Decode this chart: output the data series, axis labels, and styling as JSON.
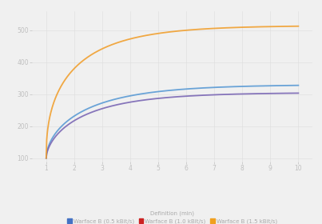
{
  "background_color": "#f0f0f0",
  "ylim": [
    90,
    560
  ],
  "xlim": [
    0.5,
    10.5
  ],
  "yticks": [
    100,
    200,
    300,
    400,
    500
  ],
  "xticks": [
    1,
    2,
    3,
    4,
    5,
    6,
    7,
    8,
    9,
    10
  ],
  "line_blue_color": "#5b9bd5",
  "line_red_color": "#e06060",
  "line_orange_color": "#f0a030",
  "line_purple_color": "#7b68b5",
  "legend_title": "Definition (min)",
  "legend_label_blue": "Warface B (0.5 kBit/s)",
  "legend_label_red": "Warface B (1.0 kBit/s)",
  "legend_label_orange": "Warface B (1.5 kBit/s)",
  "legend_color_blue": "#4472c4",
  "legend_color_red": "#cc2222",
  "legend_color_orange": "#f0a020"
}
